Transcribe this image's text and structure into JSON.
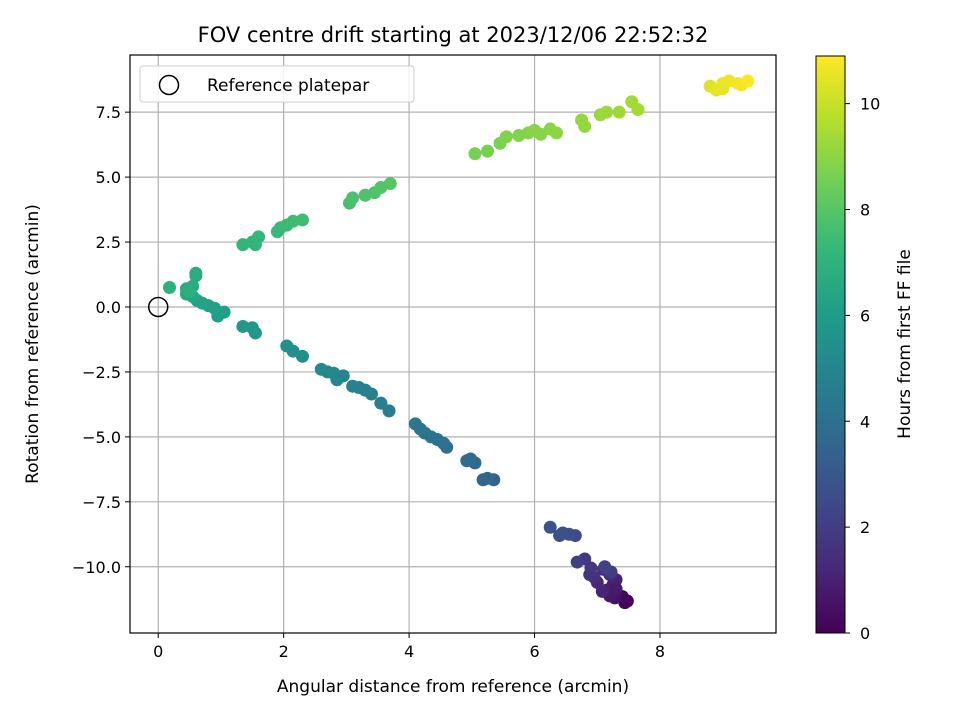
{
  "chart_data": {
    "type": "scatter",
    "title": "FOV centre drift starting at 2023/12/06 22:52:32",
    "xlabel": "Angular distance from reference (arcmin)",
    "ylabel": "Rotation from reference (arcmin)",
    "xlim": [
      -0.45,
      9.85
    ],
    "ylim": [
      -12.55,
      9.7
    ],
    "xticks": [
      0,
      2,
      4,
      6,
      8
    ],
    "xtick_labels": [
      "0",
      "2",
      "4",
      "6",
      "8"
    ],
    "yticks": [
      7.5,
      5.0,
      2.5,
      0.0,
      -2.5,
      -5.0,
      -7.5,
      -10.0
    ],
    "ytick_labels": [
      "7.5",
      "5.0",
      "2.5",
      "0.0",
      "−2.5",
      "−5.0",
      "−7.5",
      "−10.0"
    ],
    "grid": true,
    "legend": {
      "position": "top-left",
      "entries": [
        "Reference platepar"
      ]
    },
    "reference_point": {
      "x": 0,
      "y": 0,
      "label": "Reference platepar"
    },
    "colorbar": {
      "label": "Hours from first FF file",
      "range": [
        0,
        10.9
      ],
      "ticks": [
        0,
        2,
        4,
        6,
        8,
        10
      ],
      "tick_labels": [
        "0",
        "2",
        "4",
        "6",
        "8",
        "10"
      ],
      "colormap": "viridis"
    },
    "colormap_stops": [
      "#440154",
      "#482878",
      "#3e4989",
      "#31688e",
      "#26828e",
      "#1f9e89",
      "#35b779",
      "#6ece58",
      "#b5de2b",
      "#fde725"
    ],
    "points": [
      {
        "x": 7.48,
        "y": -11.32,
        "h": 0.0
      },
      {
        "x": 7.44,
        "y": -11.38,
        "h": 0.1
      },
      {
        "x": 7.4,
        "y": -11.15,
        "h": 0.25
      },
      {
        "x": 7.3,
        "y": -11.05,
        "h": 0.4
      },
      {
        "x": 7.28,
        "y": -11.2,
        "h": 0.55
      },
      {
        "x": 7.2,
        "y": -11.12,
        "h": 0.7
      },
      {
        "x": 7.15,
        "y": -10.9,
        "h": 0.85
      },
      {
        "x": 7.25,
        "y": -10.7,
        "h": 0.95
      },
      {
        "x": 7.3,
        "y": -10.5,
        "h": 1.05
      },
      {
        "x": 7.08,
        "y": -10.95,
        "h": 1.15
      },
      {
        "x": 7.0,
        "y": -10.6,
        "h": 1.25
      },
      {
        "x": 7.2,
        "y": -10.3,
        "h": 1.35
      },
      {
        "x": 7.1,
        "y": -10.1,
        "h": 1.45
      },
      {
        "x": 6.95,
        "y": -10.4,
        "h": 1.55
      },
      {
        "x": 6.88,
        "y": -10.3,
        "h": 1.65
      },
      {
        "x": 6.9,
        "y": -10.05,
        "h": 1.75
      },
      {
        "x": 6.8,
        "y": -9.7,
        "h": 1.85
      },
      {
        "x": 7.22,
        "y": -10.2,
        "h": 1.95
      },
      {
        "x": 6.68,
        "y": -9.82,
        "h": 2.05
      },
      {
        "x": 7.12,
        "y": -10.0,
        "h": 2.15
      },
      {
        "x": 7.3,
        "y": -10.85,
        "h": 0.8
      },
      {
        "x": 6.65,
        "y": -8.8,
        "h": 2.45
      },
      {
        "x": 6.55,
        "y": -8.75,
        "h": 2.55
      },
      {
        "x": 6.45,
        "y": -8.7,
        "h": 2.65
      },
      {
        "x": 6.4,
        "y": -8.8,
        "h": 2.75
      },
      {
        "x": 6.25,
        "y": -8.48,
        "h": 2.85
      },
      {
        "x": 5.35,
        "y": -6.65,
        "h": 3.45
      },
      {
        "x": 5.25,
        "y": -6.6,
        "h": 3.55
      },
      {
        "x": 5.18,
        "y": -6.65,
        "h": 3.6
      },
      {
        "x": 5.05,
        "y": -6.0,
        "h": 3.7
      },
      {
        "x": 4.98,
        "y": -5.85,
        "h": 3.75
      },
      {
        "x": 4.92,
        "y": -5.92,
        "h": 3.8
      },
      {
        "x": 4.6,
        "y": -5.4,
        "h": 4.0
      },
      {
        "x": 4.55,
        "y": -5.25,
        "h": 4.05
      },
      {
        "x": 4.45,
        "y": -5.1,
        "h": 4.1
      },
      {
        "x": 4.35,
        "y": -5.0,
        "h": 4.15
      },
      {
        "x": 4.25,
        "y": -4.85,
        "h": 4.2
      },
      {
        "x": 4.18,
        "y": -4.7,
        "h": 4.25
      },
      {
        "x": 4.1,
        "y": -4.5,
        "h": 4.3
      },
      {
        "x": 3.68,
        "y": -4.0,
        "h": 4.6
      },
      {
        "x": 3.55,
        "y": -3.7,
        "h": 4.65
      },
      {
        "x": 3.4,
        "y": -3.35,
        "h": 4.7
      },
      {
        "x": 3.3,
        "y": -3.2,
        "h": 4.75
      },
      {
        "x": 3.2,
        "y": -3.1,
        "h": 4.8
      },
      {
        "x": 3.1,
        "y": -3.05,
        "h": 4.85
      },
      {
        "x": 2.95,
        "y": -2.65,
        "h": 4.95
      },
      {
        "x": 2.85,
        "y": -2.8,
        "h": 5.0
      },
      {
        "x": 2.8,
        "y": -2.55,
        "h": 5.05
      },
      {
        "x": 2.7,
        "y": -2.5,
        "h": 5.1
      },
      {
        "x": 2.6,
        "y": -2.4,
        "h": 5.15
      },
      {
        "x": 2.3,
        "y": -1.9,
        "h": 5.4
      },
      {
        "x": 2.15,
        "y": -1.7,
        "h": 5.45
      },
      {
        "x": 2.05,
        "y": -1.5,
        "h": 5.5
      },
      {
        "x": 1.55,
        "y": -1.0,
        "h": 5.75
      },
      {
        "x": 1.5,
        "y": -0.8,
        "h": 5.8
      },
      {
        "x": 1.35,
        "y": -0.75,
        "h": 5.85
      },
      {
        "x": 1.05,
        "y": -0.2,
        "h": 6.05
      },
      {
        "x": 0.95,
        "y": -0.35,
        "h": 6.1
      },
      {
        "x": 0.9,
        "y": -0.05,
        "h": 6.15
      },
      {
        "x": 0.8,
        "y": 0.05,
        "h": 6.2
      },
      {
        "x": 0.7,
        "y": 0.15,
        "h": 6.25
      },
      {
        "x": 0.62,
        "y": 0.25,
        "h": 6.3
      },
      {
        "x": 0.55,
        "y": 0.4,
        "h": 6.4
      },
      {
        "x": 0.45,
        "y": 0.5,
        "h": 6.5
      },
      {
        "x": 0.45,
        "y": 0.7,
        "h": 6.6
      },
      {
        "x": 0.55,
        "y": 0.8,
        "h": 6.7
      },
      {
        "x": 0.6,
        "y": 1.2,
        "h": 6.75
      },
      {
        "x": 0.6,
        "y": 1.3,
        "h": 6.8
      },
      {
        "x": 0.18,
        "y": 0.75,
        "h": 6.9
      },
      {
        "x": 0.5,
        "y": 0.6,
        "h": 6.85
      },
      {
        "x": 1.35,
        "y": 2.4,
        "h": 7.1
      },
      {
        "x": 1.5,
        "y": 2.5,
        "h": 7.15
      },
      {
        "x": 1.55,
        "y": 2.4,
        "h": 7.18
      },
      {
        "x": 1.6,
        "y": 2.7,
        "h": 7.22
      },
      {
        "x": 1.9,
        "y": 2.9,
        "h": 7.3
      },
      {
        "x": 1.95,
        "y": 3.05,
        "h": 7.35
      },
      {
        "x": 2.05,
        "y": 3.15,
        "h": 7.4
      },
      {
        "x": 2.15,
        "y": 3.3,
        "h": 7.45
      },
      {
        "x": 2.3,
        "y": 3.35,
        "h": 7.5
      },
      {
        "x": 3.05,
        "y": 4.0,
        "h": 7.7
      },
      {
        "x": 3.1,
        "y": 4.2,
        "h": 7.75
      },
      {
        "x": 3.3,
        "y": 4.3,
        "h": 7.8
      },
      {
        "x": 3.45,
        "y": 4.4,
        "h": 7.85
      },
      {
        "x": 3.55,
        "y": 4.6,
        "h": 7.9
      },
      {
        "x": 3.7,
        "y": 4.75,
        "h": 7.95
      },
      {
        "x": 5.05,
        "y": 5.9,
        "h": 8.6
      },
      {
        "x": 5.25,
        "y": 6.0,
        "h": 8.65
      },
      {
        "x": 5.45,
        "y": 6.3,
        "h": 8.7
      },
      {
        "x": 5.55,
        "y": 6.55,
        "h": 8.75
      },
      {
        "x": 5.75,
        "y": 6.6,
        "h": 8.8
      },
      {
        "x": 5.9,
        "y": 6.7,
        "h": 8.85
      },
      {
        "x": 6.0,
        "y": 6.8,
        "h": 8.9
      },
      {
        "x": 6.1,
        "y": 6.65,
        "h": 8.92
      },
      {
        "x": 6.25,
        "y": 6.85,
        "h": 8.95
      },
      {
        "x": 6.35,
        "y": 6.7,
        "h": 9.0
      },
      {
        "x": 6.75,
        "y": 7.2,
        "h": 9.1
      },
      {
        "x": 6.8,
        "y": 6.95,
        "h": 9.15
      },
      {
        "x": 7.05,
        "y": 7.4,
        "h": 9.2
      },
      {
        "x": 7.15,
        "y": 7.5,
        "h": 9.25
      },
      {
        "x": 7.35,
        "y": 7.5,
        "h": 9.3
      },
      {
        "x": 7.55,
        "y": 7.9,
        "h": 9.35
      },
      {
        "x": 7.65,
        "y": 7.6,
        "h": 9.4
      },
      {
        "x": 8.8,
        "y": 8.5,
        "h": 10.4
      },
      {
        "x": 8.9,
        "y": 8.35,
        "h": 10.5
      },
      {
        "x": 9.0,
        "y": 8.6,
        "h": 10.6
      },
      {
        "x": 9.1,
        "y": 8.7,
        "h": 10.65
      },
      {
        "x": 9.25,
        "y": 8.6,
        "h": 10.7
      },
      {
        "x": 9.3,
        "y": 8.55,
        "h": 10.75
      },
      {
        "x": 9.4,
        "y": 8.7,
        "h": 10.85
      },
      {
        "x": 9.0,
        "y": 8.4,
        "h": 10.55
      }
    ]
  }
}
